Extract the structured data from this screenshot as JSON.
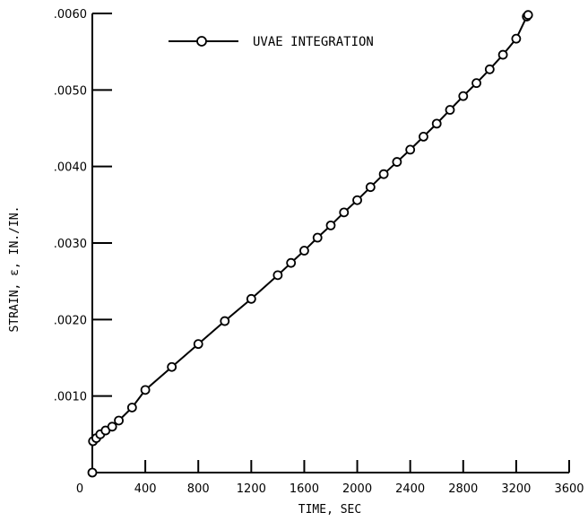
{
  "chart_data": {
    "type": "line",
    "title": "",
    "xlabel": "TIME, SEC",
    "ylabel": "STRAIN, ε, IN./IN.",
    "xlim": [
      0,
      3600
    ],
    "ylim": [
      0,
      0.006
    ],
    "x_ticks": [
      0,
      400,
      800,
      1200,
      1600,
      2000,
      2400,
      2800,
      3200,
      3600
    ],
    "x_tick_labels": [
      "0",
      "400",
      "800",
      "1200",
      "1600",
      "2000",
      "2400",
      "2800",
      "3200",
      "3600"
    ],
    "y_ticks": [
      0.001,
      0.002,
      0.003,
      0.004,
      0.005,
      0.006
    ],
    "y_tick_labels": [
      ".0010",
      ".0020",
      ".0030",
      ".0040",
      ".0050",
      ".0060"
    ],
    "grid": false,
    "legend": "top-left",
    "series": [
      {
        "name": "UVAE INTEGRATION",
        "marker": "open-circle",
        "color": "#000000",
        "points": [
          [
            0,
            0.0
          ],
          [
            5,
            0.00041
          ],
          [
            30,
            0.00045
          ],
          [
            60,
            0.0005
          ],
          [
            100,
            0.00055
          ],
          [
            150,
            0.0006
          ],
          [
            200,
            0.00068
          ],
          [
            300,
            0.00085
          ],
          [
            400,
            0.00108
          ],
          [
            600,
            0.00138
          ],
          [
            800,
            0.00168
          ],
          [
            1000,
            0.00198
          ],
          [
            1200,
            0.00227
          ],
          [
            1400,
            0.00258
          ],
          [
            1500,
            0.00274
          ],
          [
            1600,
            0.0029
          ],
          [
            1700,
            0.00307
          ],
          [
            1800,
            0.00323
          ],
          [
            1900,
            0.0034
          ],
          [
            2000,
            0.00356
          ],
          [
            2100,
            0.00373
          ],
          [
            2200,
            0.0039
          ],
          [
            2300,
            0.00406
          ],
          [
            2400,
            0.00422
          ],
          [
            2500,
            0.00439
          ],
          [
            2600,
            0.00456
          ],
          [
            2700,
            0.00474
          ],
          [
            2800,
            0.00492
          ],
          [
            2900,
            0.00509
          ],
          [
            3000,
            0.00527
          ],
          [
            3100,
            0.00546
          ],
          [
            3200,
            0.00567
          ],
          [
            3280,
            0.00596
          ],
          [
            3290,
            0.00598
          ]
        ]
      }
    ]
  }
}
